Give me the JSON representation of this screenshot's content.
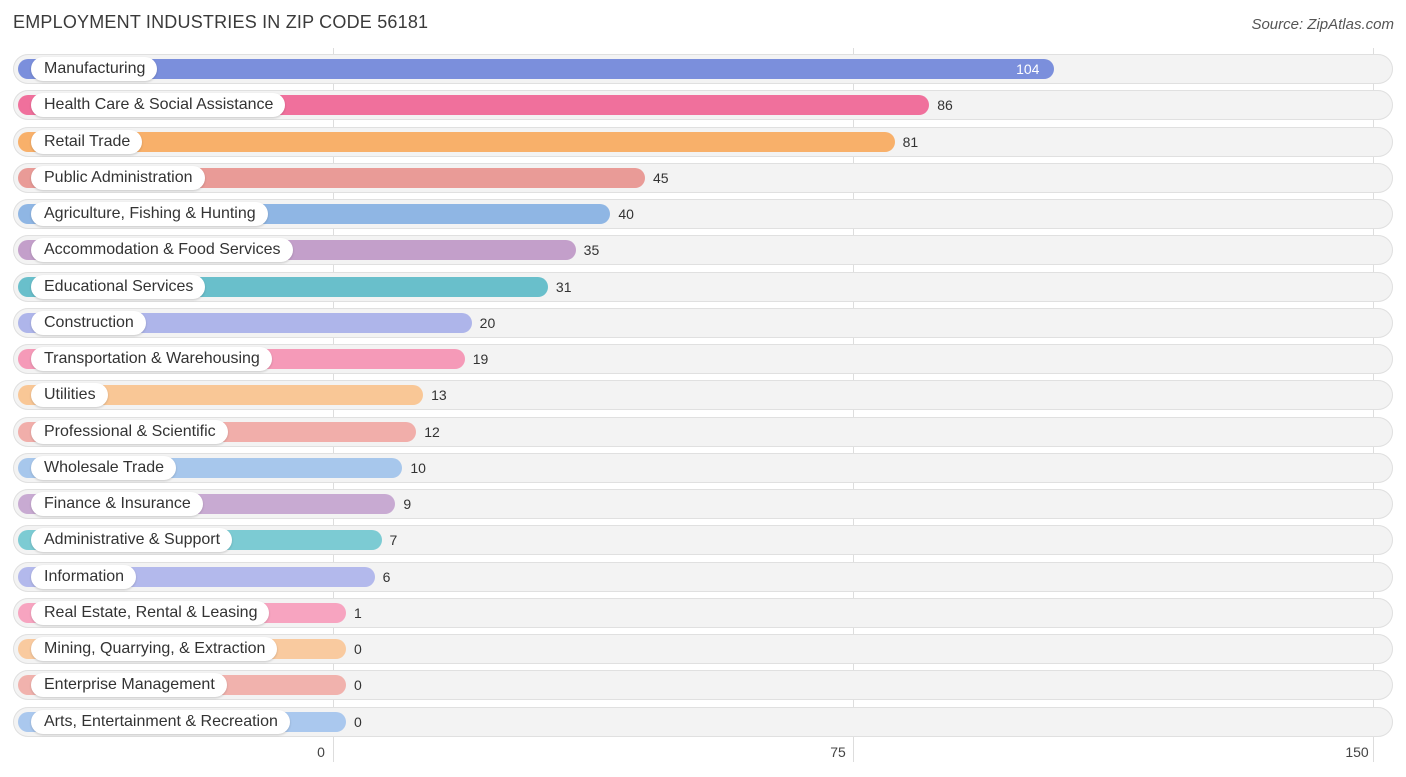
{
  "title": "EMPLOYMENT INDUSTRIES IN ZIP CODE 56181",
  "source": "Source: ZipAtlas.com",
  "chart_data": {
    "type": "bar",
    "orientation": "horizontal",
    "title": "EMPLOYMENT INDUSTRIES IN ZIP CODE 56181",
    "categories": [
      "Manufacturing",
      "Health Care & Social Assistance",
      "Retail Trade",
      "Public Administration",
      "Agriculture, Fishing & Hunting",
      "Accommodation & Food Services",
      "Educational Services",
      "Construction",
      "Transportation & Warehousing",
      "Utilities",
      "Professional & Scientific",
      "Wholesale Trade",
      "Finance & Insurance",
      "Administrative & Support",
      "Information",
      "Real Estate, Rental & Leasing",
      "Mining, Quarrying, & Extraction",
      "Enterprise Management",
      "Arts, Entertainment & Recreation"
    ],
    "values": [
      104,
      86,
      81,
      45,
      40,
      35,
      31,
      20,
      19,
      13,
      12,
      10,
      9,
      7,
      6,
      1,
      0,
      0,
      0
    ],
    "colors": [
      "#7b8fdc",
      "#f0709c",
      "#f8b06a",
      "#e99b97",
      "#8fb6e4",
      "#c39fca",
      "#69bfcb",
      "#aeb5ea",
      "#f59ab8",
      "#f9c796",
      "#f1aeaa",
      "#a7c7ec",
      "#c8aad2",
      "#7ccbd3",
      "#b3b9ec",
      "#f7a4c0",
      "#f9ca9f",
      "#f1b2ad",
      "#aac8ee"
    ],
    "x_ticks": [
      "0",
      "75",
      "150"
    ],
    "xlim": [
      0,
      150
    ],
    "grid": true
  }
}
